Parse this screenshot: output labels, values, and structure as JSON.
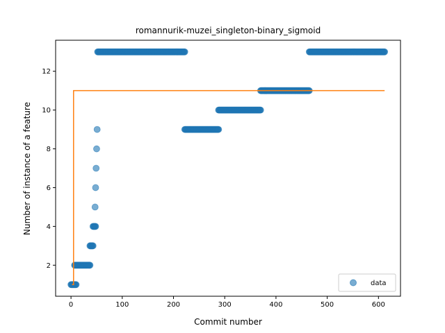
{
  "chart_data": {
    "type": "scatter",
    "title": "romannurik-muzei_singleton-binary_sigmoid",
    "xlabel": "Commit number",
    "ylabel": "Number of instance of a feature",
    "xlim": [
      -30,
      643
    ],
    "ylim": [
      0.4,
      13.6
    ],
    "xticks": [
      0,
      100,
      200,
      300,
      400,
      500,
      600
    ],
    "yticks": [
      2,
      4,
      6,
      8,
      10,
      12
    ],
    "grid": false,
    "legend": {
      "position": "bottom-right",
      "entries": [
        "data"
      ]
    },
    "series": [
      {
        "name": "data",
        "kind": "scatter",
        "color": "#1f77b4",
        "runs": [
          {
            "x_start": 0,
            "x_end": 10,
            "y": 1
          },
          {
            "x_start": 7,
            "x_end": 37,
            "y": 2
          },
          {
            "x_start": 37,
            "x_end": 43,
            "y": 3
          },
          {
            "x_start": 43,
            "x_end": 48,
            "y": 4
          },
          {
            "x": 47,
            "y": 5
          },
          {
            "x": 48,
            "y": 6
          },
          {
            "x": 49,
            "y": 7
          },
          {
            "x": 50,
            "y": 8
          },
          {
            "x": 51,
            "y": 9
          },
          {
            "x_start": 52,
            "x_end": 222,
            "y": 13
          },
          {
            "x_start": 222,
            "x_end": 288,
            "y": 9
          },
          {
            "x_start": 288,
            "x_end": 370,
            "y": 10
          },
          {
            "x_start": 370,
            "x_end": 465,
            "y": 11
          },
          {
            "x_start": 465,
            "x_end": 612,
            "y": 13
          }
        ]
      },
      {
        "kind": "line",
        "color": "#ff7f0e",
        "x": [
          2,
          2,
          5,
          5,
          612
        ],
        "y": [
          1,
          1,
          1,
          11,
          11
        ]
      }
    ]
  }
}
